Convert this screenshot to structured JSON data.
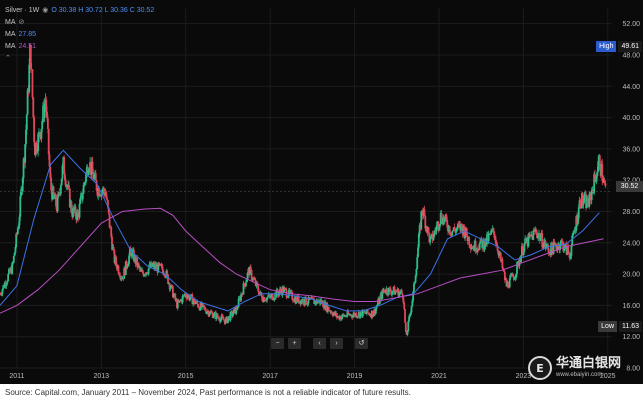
{
  "legend": {
    "title": "Silver · 1W",
    "ohlc": "O 30.38  H 30.72  L 30.36  C 30.52",
    "ma0_label": "MA",
    "ma1_label": "MA",
    "ma1_value": "27.85",
    "ma2_label": "MA",
    "ma2_value": "24.51"
  },
  "tags": {
    "high_label": "High",
    "high_value": "49.61",
    "low_label": "Low",
    "low_value": "11.63",
    "current_price": "30.52"
  },
  "toolbar": {
    "zoom_out": "−",
    "zoom_in": "+",
    "scroll_left": "‹",
    "scroll_right": "›",
    "reset": "↺"
  },
  "watermark": {
    "logo_text": "E",
    "brand": "华通白银网",
    "url": "www.ebaiyin.com"
  },
  "source": "Source: Capital.com, January 2011 – November 2024, Past performance is not a reliable indicator of future results.",
  "colors": {
    "background": "#0a0a0a",
    "up": "#2bbf8a",
    "down": "#e0485a",
    "ma_fast": "#3b72e6",
    "ma_slow": "#b84ec4",
    "grid": "#1c1c1c",
    "axis_text": "#bdbdbd"
  },
  "chart_data": {
    "type": "candlestick",
    "title": "Silver · 1W",
    "xlim": [
      2010.6,
      2025.1
    ],
    "ylim": [
      8,
      54
    ],
    "y_ticks": [
      8.0,
      12.0,
      16.0,
      20.0,
      24.0,
      28.0,
      32.0,
      36.0,
      40.0,
      44.0,
      48.0,
      52.0
    ],
    "x_ticks": [
      2011,
      2013,
      2015,
      2017,
      2019,
      2021,
      2023,
      2025
    ],
    "x_tick_labels": [
      "2011",
      "2013",
      "2015",
      "2017",
      "2019",
      "2021",
      "2023",
      "2025"
    ],
    "high": 49.61,
    "low": 11.63,
    "last": 30.52,
    "price_series": [
      [
        2010.6,
        17.5
      ],
      [
        2010.9,
        21.0
      ],
      [
        2011.05,
        27.0
      ],
      [
        2011.2,
        37.0
      ],
      [
        2011.32,
        49.0
      ],
      [
        2011.42,
        36.0
      ],
      [
        2011.55,
        38.0
      ],
      [
        2011.68,
        42.5
      ],
      [
        2011.8,
        31.0
      ],
      [
        2011.95,
        28.5
      ],
      [
        2012.1,
        34.0
      ],
      [
        2012.3,
        28.0
      ],
      [
        2012.45,
        27.5
      ],
      [
        2012.7,
        34.5
      ],
      [
        2012.9,
        31.0
      ],
      [
        2013.1,
        30.5
      ],
      [
        2013.3,
        22.0
      ],
      [
        2013.5,
        19.5
      ],
      [
        2013.7,
        23.0
      ],
      [
        2013.95,
        20.0
      ],
      [
        2014.2,
        21.0
      ],
      [
        2014.5,
        20.5
      ],
      [
        2014.8,
        16.0
      ],
      [
        2015.0,
        17.5
      ],
      [
        2015.3,
        16.0
      ],
      [
        2015.6,
        15.0
      ],
      [
        2015.95,
        14.0
      ],
      [
        2016.2,
        15.5
      ],
      [
        2016.5,
        20.5
      ],
      [
        2016.8,
        17.0
      ],
      [
        2017.0,
        17.0
      ],
      [
        2017.3,
        18.0
      ],
      [
        2017.6,
        16.8
      ],
      [
        2017.9,
        16.5
      ],
      [
        2018.2,
        16.5
      ],
      [
        2018.6,
        14.5
      ],
      [
        2018.9,
        14.8
      ],
      [
        2019.2,
        15.0
      ],
      [
        2019.45,
        15.0
      ],
      [
        2019.7,
        18.0
      ],
      [
        2019.95,
        17.8
      ],
      [
        2020.15,
        17.5
      ],
      [
        2020.22,
        11.8
      ],
      [
        2020.4,
        17.8
      ],
      [
        2020.6,
        28.5
      ],
      [
        2020.8,
        24.0
      ],
      [
        2021.05,
        27.5
      ],
      [
        2021.3,
        25.5
      ],
      [
        2021.55,
        26.0
      ],
      [
        2021.8,
        23.5
      ],
      [
        2022.1,
        24.0
      ],
      [
        2022.3,
        25.5
      ],
      [
        2022.6,
        18.5
      ],
      [
        2022.8,
        20.0
      ],
      [
        2023.0,
        23.5
      ],
      [
        2023.3,
        25.5
      ],
      [
        2023.6,
        23.0
      ],
      [
        2023.9,
        24.0
      ],
      [
        2024.1,
        22.5
      ],
      [
        2024.35,
        29.5
      ],
      [
        2024.55,
        29.0
      ],
      [
        2024.8,
        34.5
      ],
      [
        2024.95,
        30.52
      ]
    ],
    "series": [
      {
        "name": "MA",
        "value": 27.85,
        "points": [
          [
            2010.6,
            16.0
          ],
          [
            2011.0,
            18.5
          ],
          [
            2011.4,
            27.0
          ],
          [
            2011.8,
            34.0
          ],
          [
            2012.1,
            35.8
          ],
          [
            2012.5,
            33.5
          ],
          [
            2012.9,
            31.5
          ],
          [
            2013.3,
            27.0
          ],
          [
            2013.7,
            23.0
          ],
          [
            2014.1,
            21.0
          ],
          [
            2014.5,
            20.0
          ],
          [
            2014.9,
            18.0
          ],
          [
            2015.3,
            16.5
          ],
          [
            2015.7,
            15.8
          ],
          [
            2016.0,
            15.3
          ],
          [
            2016.4,
            16.5
          ],
          [
            2016.8,
            17.5
          ],
          [
            2017.2,
            17.5
          ],
          [
            2017.6,
            17.2
          ],
          [
            2018.0,
            16.8
          ],
          [
            2018.4,
            16.0
          ],
          [
            2018.8,
            15.3
          ],
          [
            2019.2,
            15.3
          ],
          [
            2019.6,
            16.0
          ],
          [
            2020.0,
            17.0
          ],
          [
            2020.4,
            17.5
          ],
          [
            2020.8,
            20.0
          ],
          [
            2021.2,
            24.5
          ],
          [
            2021.6,
            25.5
          ],
          [
            2022.0,
            24.5
          ],
          [
            2022.4,
            23.5
          ],
          [
            2022.8,
            21.8
          ],
          [
            2023.2,
            22.5
          ],
          [
            2023.6,
            23.5
          ],
          [
            2024.0,
            23.8
          ],
          [
            2024.4,
            25.5
          ],
          [
            2024.8,
            27.85
          ]
        ]
      },
      {
        "name": "MA",
        "value": 24.51,
        "points": [
          [
            2010.6,
            15.0
          ],
          [
            2011.0,
            16.0
          ],
          [
            2011.5,
            18.0
          ],
          [
            2012.0,
            20.5
          ],
          [
            2012.5,
            23.5
          ],
          [
            2013.0,
            26.5
          ],
          [
            2013.5,
            28.0
          ],
          [
            2014.0,
            28.3
          ],
          [
            2014.4,
            28.4
          ],
          [
            2014.7,
            27.5
          ],
          [
            2015.0,
            25.5
          ],
          [
            2015.4,
            23.5
          ],
          [
            2015.8,
            21.5
          ],
          [
            2016.2,
            20.0
          ],
          [
            2016.6,
            19.0
          ],
          [
            2017.0,
            18.0
          ],
          [
            2017.5,
            17.5
          ],
          [
            2018.0,
            17.2
          ],
          [
            2018.5,
            16.8
          ],
          [
            2019.0,
            16.5
          ],
          [
            2019.5,
            16.5
          ],
          [
            2020.0,
            17.0
          ],
          [
            2020.5,
            17.5
          ],
          [
            2021.0,
            18.5
          ],
          [
            2021.5,
            19.5
          ],
          [
            2022.0,
            20.0
          ],
          [
            2022.5,
            20.5
          ],
          [
            2023.0,
            21.5
          ],
          [
            2023.5,
            22.5
          ],
          [
            2024.0,
            23.5
          ],
          [
            2024.9,
            24.51
          ]
        ]
      }
    ]
  }
}
